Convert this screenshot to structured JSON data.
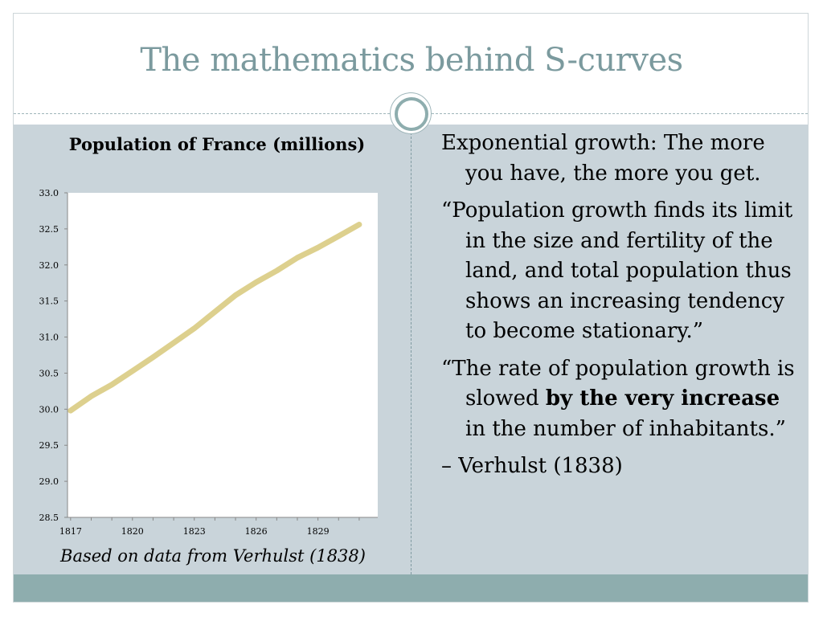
{
  "slide": {
    "title": "The mathematics behind S-curves"
  },
  "colors": {
    "title": "#7b9a9e",
    "content_bg": "#c9d4da",
    "footer_band": "#8eadae",
    "line": "#ddd08e"
  },
  "chart_data": {
    "type": "line",
    "title": "Population of France (millions)",
    "xlabel": "",
    "ylabel": "",
    "ylim": [
      28.5,
      33.0
    ],
    "yticks": [
      "28.5",
      "29.0",
      "29.5",
      "30.0",
      "30.5",
      "31.0",
      "31.5",
      "32.0",
      "32.5",
      "33.0"
    ],
    "xticks": [
      "1817",
      "1820",
      "1823",
      "1826",
      "1829"
    ],
    "grid": false,
    "legend": "none",
    "x": [
      1817,
      1818,
      1819,
      1820,
      1821,
      1822,
      1823,
      1824,
      1825,
      1826,
      1827,
      1828,
      1829,
      1830,
      1831
    ],
    "series": [
      {
        "values": [
          29.98,
          30.18,
          30.34,
          30.53,
          30.72,
          30.92,
          31.12,
          31.35,
          31.58,
          31.76,
          31.92,
          32.1,
          32.24,
          32.4,
          32.56
        ]
      }
    ]
  },
  "caption": "Based on data from Verhulst (1838)",
  "bullets": [
    {
      "parts": [
        {
          "text": "Exponential growth: The more you have, the more you get.",
          "bold": false
        }
      ]
    },
    {
      "parts": [
        {
          "text": "“Population growth finds its limit in the size and fertility of the land, and total population thus shows an increasing tendency to become stationary.”",
          "bold": false
        }
      ]
    },
    {
      "parts": [
        {
          "text": "“The rate of population growth is slowed ",
          "bold": false
        },
        {
          "text": "by the very increase",
          "bold": true
        },
        {
          "text": " in the number of inhabitants.”",
          "bold": false
        }
      ]
    },
    {
      "parts": [
        {
          "text": "– Verhulst (1838)",
          "bold": false
        }
      ]
    }
  ]
}
